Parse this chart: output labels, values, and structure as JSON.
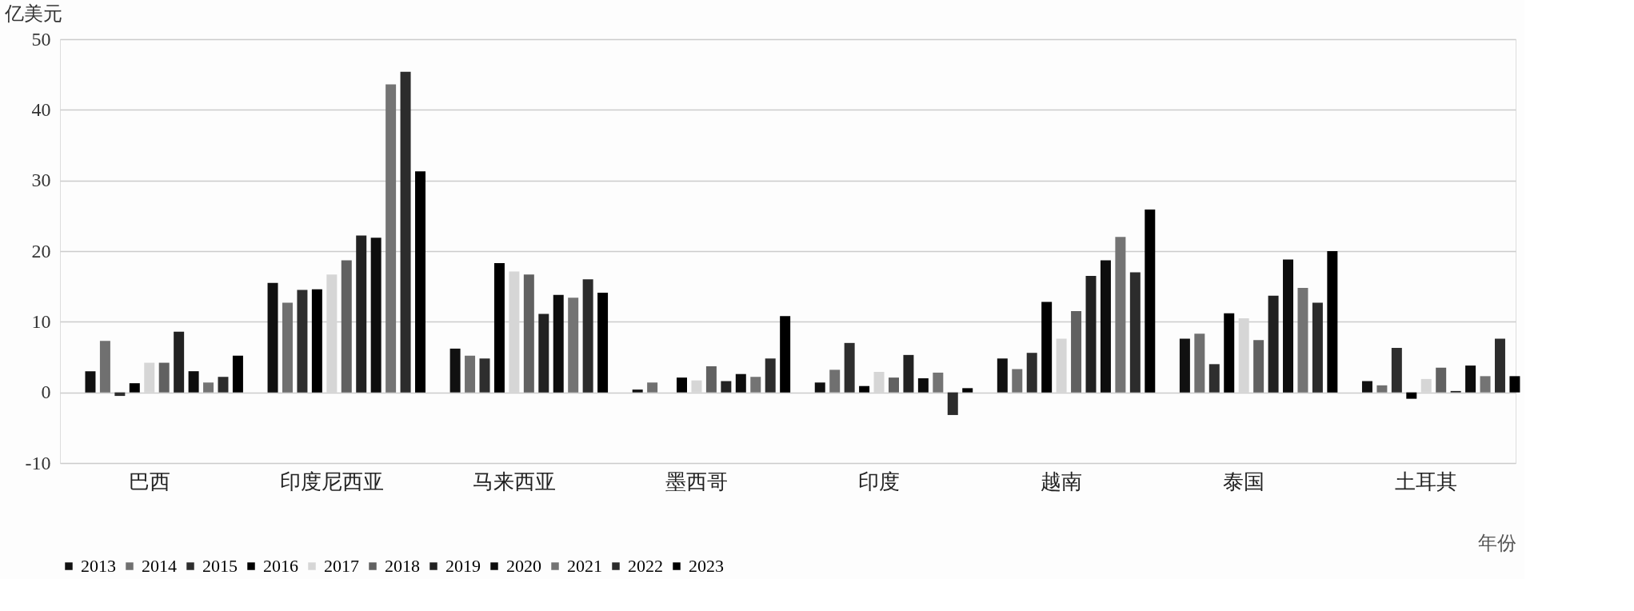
{
  "chart_data": {
    "type": "bar",
    "ylabel": "亿美元",
    "xlabel": "年份",
    "categories": [
      "巴西",
      "印度尼西亚",
      "马来西亚",
      "墨西哥",
      "印度",
      "越南",
      "泰国",
      "土耳其"
    ],
    "series": [
      {
        "name": "2013",
        "color": "#111111",
        "values": [
          3.0,
          15.5,
          6.2,
          0.4,
          1.4,
          4.8,
          7.6,
          1.6
        ]
      },
      {
        "name": "2014",
        "color": "#707070",
        "values": [
          7.3,
          12.7,
          5.2,
          1.4,
          3.2,
          3.3,
          8.3,
          1.0
        ]
      },
      {
        "name": "2015",
        "color": "#2e2e2e",
        "values": [
          -0.5,
          14.5,
          4.8,
          0,
          7.0,
          5.6,
          4.0,
          6.3
        ]
      },
      {
        "name": "2016",
        "color": "#000000",
        "values": [
          1.3,
          14.6,
          18.3,
          2.1,
          0.9,
          12.8,
          11.2,
          -0.9
        ]
      },
      {
        "name": "2017",
        "color": "#d6d6d6",
        "values": [
          4.2,
          16.7,
          17.1,
          1.7,
          2.9,
          7.6,
          10.5,
          1.9
        ]
      },
      {
        "name": "2018",
        "color": "#616161",
        "values": [
          4.2,
          18.7,
          16.7,
          3.7,
          2.1,
          11.5,
          7.4,
          3.5
        ]
      },
      {
        "name": "2019",
        "color": "#222222",
        "values": [
          8.6,
          22.2,
          11.1,
          1.6,
          5.3,
          16.5,
          13.7,
          0.2
        ]
      },
      {
        "name": "2020",
        "color": "#0d0d0d",
        "values": [
          3.0,
          21.9,
          13.8,
          2.6,
          2.0,
          18.7,
          18.8,
          3.8
        ]
      },
      {
        "name": "2021",
        "color": "#747474",
        "values": [
          1.4,
          43.6,
          13.4,
          2.2,
          2.8,
          22.0,
          14.8,
          2.3
        ]
      },
      {
        "name": "2022",
        "color": "#2c2c2c",
        "values": [
          2.2,
          45.4,
          16.0,
          4.8,
          -3.2,
          17.0,
          12.7,
          7.6
        ]
      },
      {
        "name": "2023",
        "color": "#000000",
        "values": [
          5.2,
          31.3,
          14.1,
          10.8,
          0.6,
          25.9,
          20.0,
          2.3
        ]
      }
    ],
    "ylim": [
      -10,
      50
    ],
    "yticks": [
      -10,
      0,
      10,
      20,
      30,
      40,
      50
    ],
    "grid": "y",
    "legend": "bottom"
  }
}
